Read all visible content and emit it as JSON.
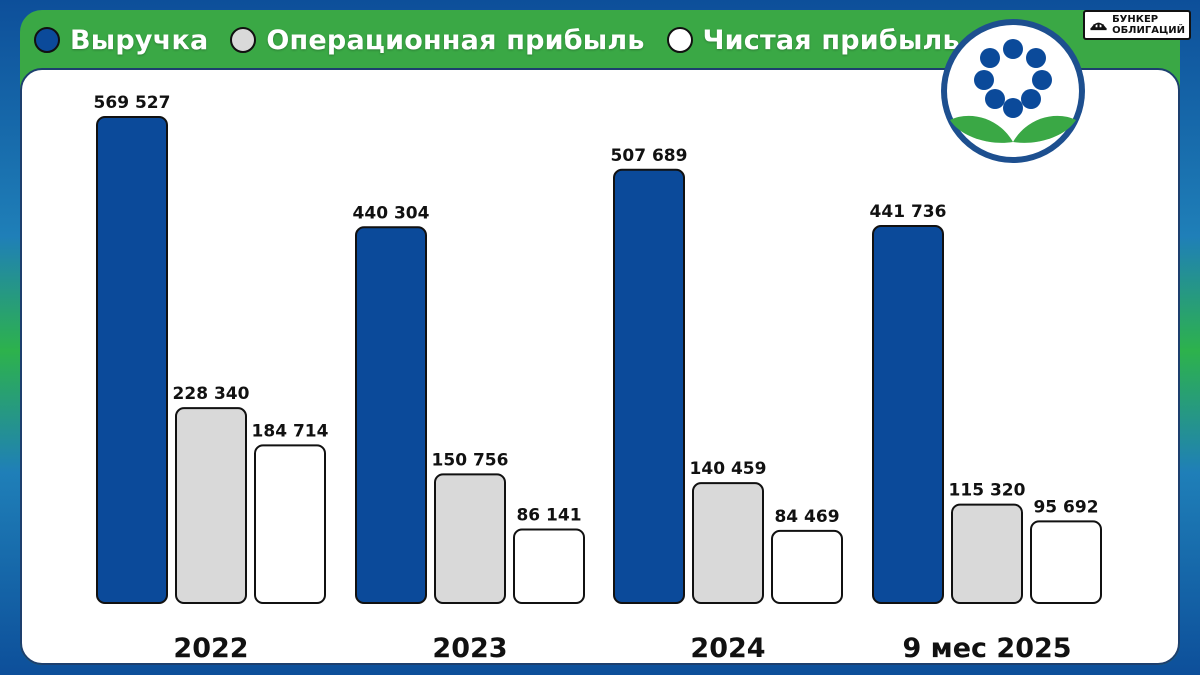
{
  "legend": [
    {
      "label": "Выручка",
      "color": "#0b4a9a"
    },
    {
      "label": "Операционная прибыль",
      "color": "#d9d9d9"
    },
    {
      "label": "Чистая прибыль",
      "color": "#ffffff"
    }
  ],
  "brand": {
    "line1": "БУНКЕР",
    "line2": "ОБЛИГАЦИЙ"
  },
  "chart_data": {
    "type": "bar",
    "title": "",
    "xlabel": "",
    "ylabel": "",
    "grid": false,
    "categories": [
      "2022",
      "2023",
      "2024",
      "9 мес 2025"
    ],
    "series": [
      {
        "name": "Выручка",
        "color": "#0b4a9a",
        "values": [
          569527,
          440304,
          507689,
          441736
        ],
        "labels": [
          "569 527",
          "440 304",
          "507 689",
          "441 736"
        ]
      },
      {
        "name": "Операционная прибыль",
        "color": "#d9d9d9",
        "values": [
          228340,
          150756,
          140459,
          115320
        ],
        "labels": [
          "228 340",
          "150 756",
          "140 459",
          "115 320"
        ]
      },
      {
        "name": "Чистая прибыль",
        "color": "#ffffff",
        "values": [
          184714,
          86141,
          84469,
          95692
        ],
        "labels": [
          "184 714",
          "86 141",
          "84 469",
          "95 692"
        ]
      }
    ]
  }
}
